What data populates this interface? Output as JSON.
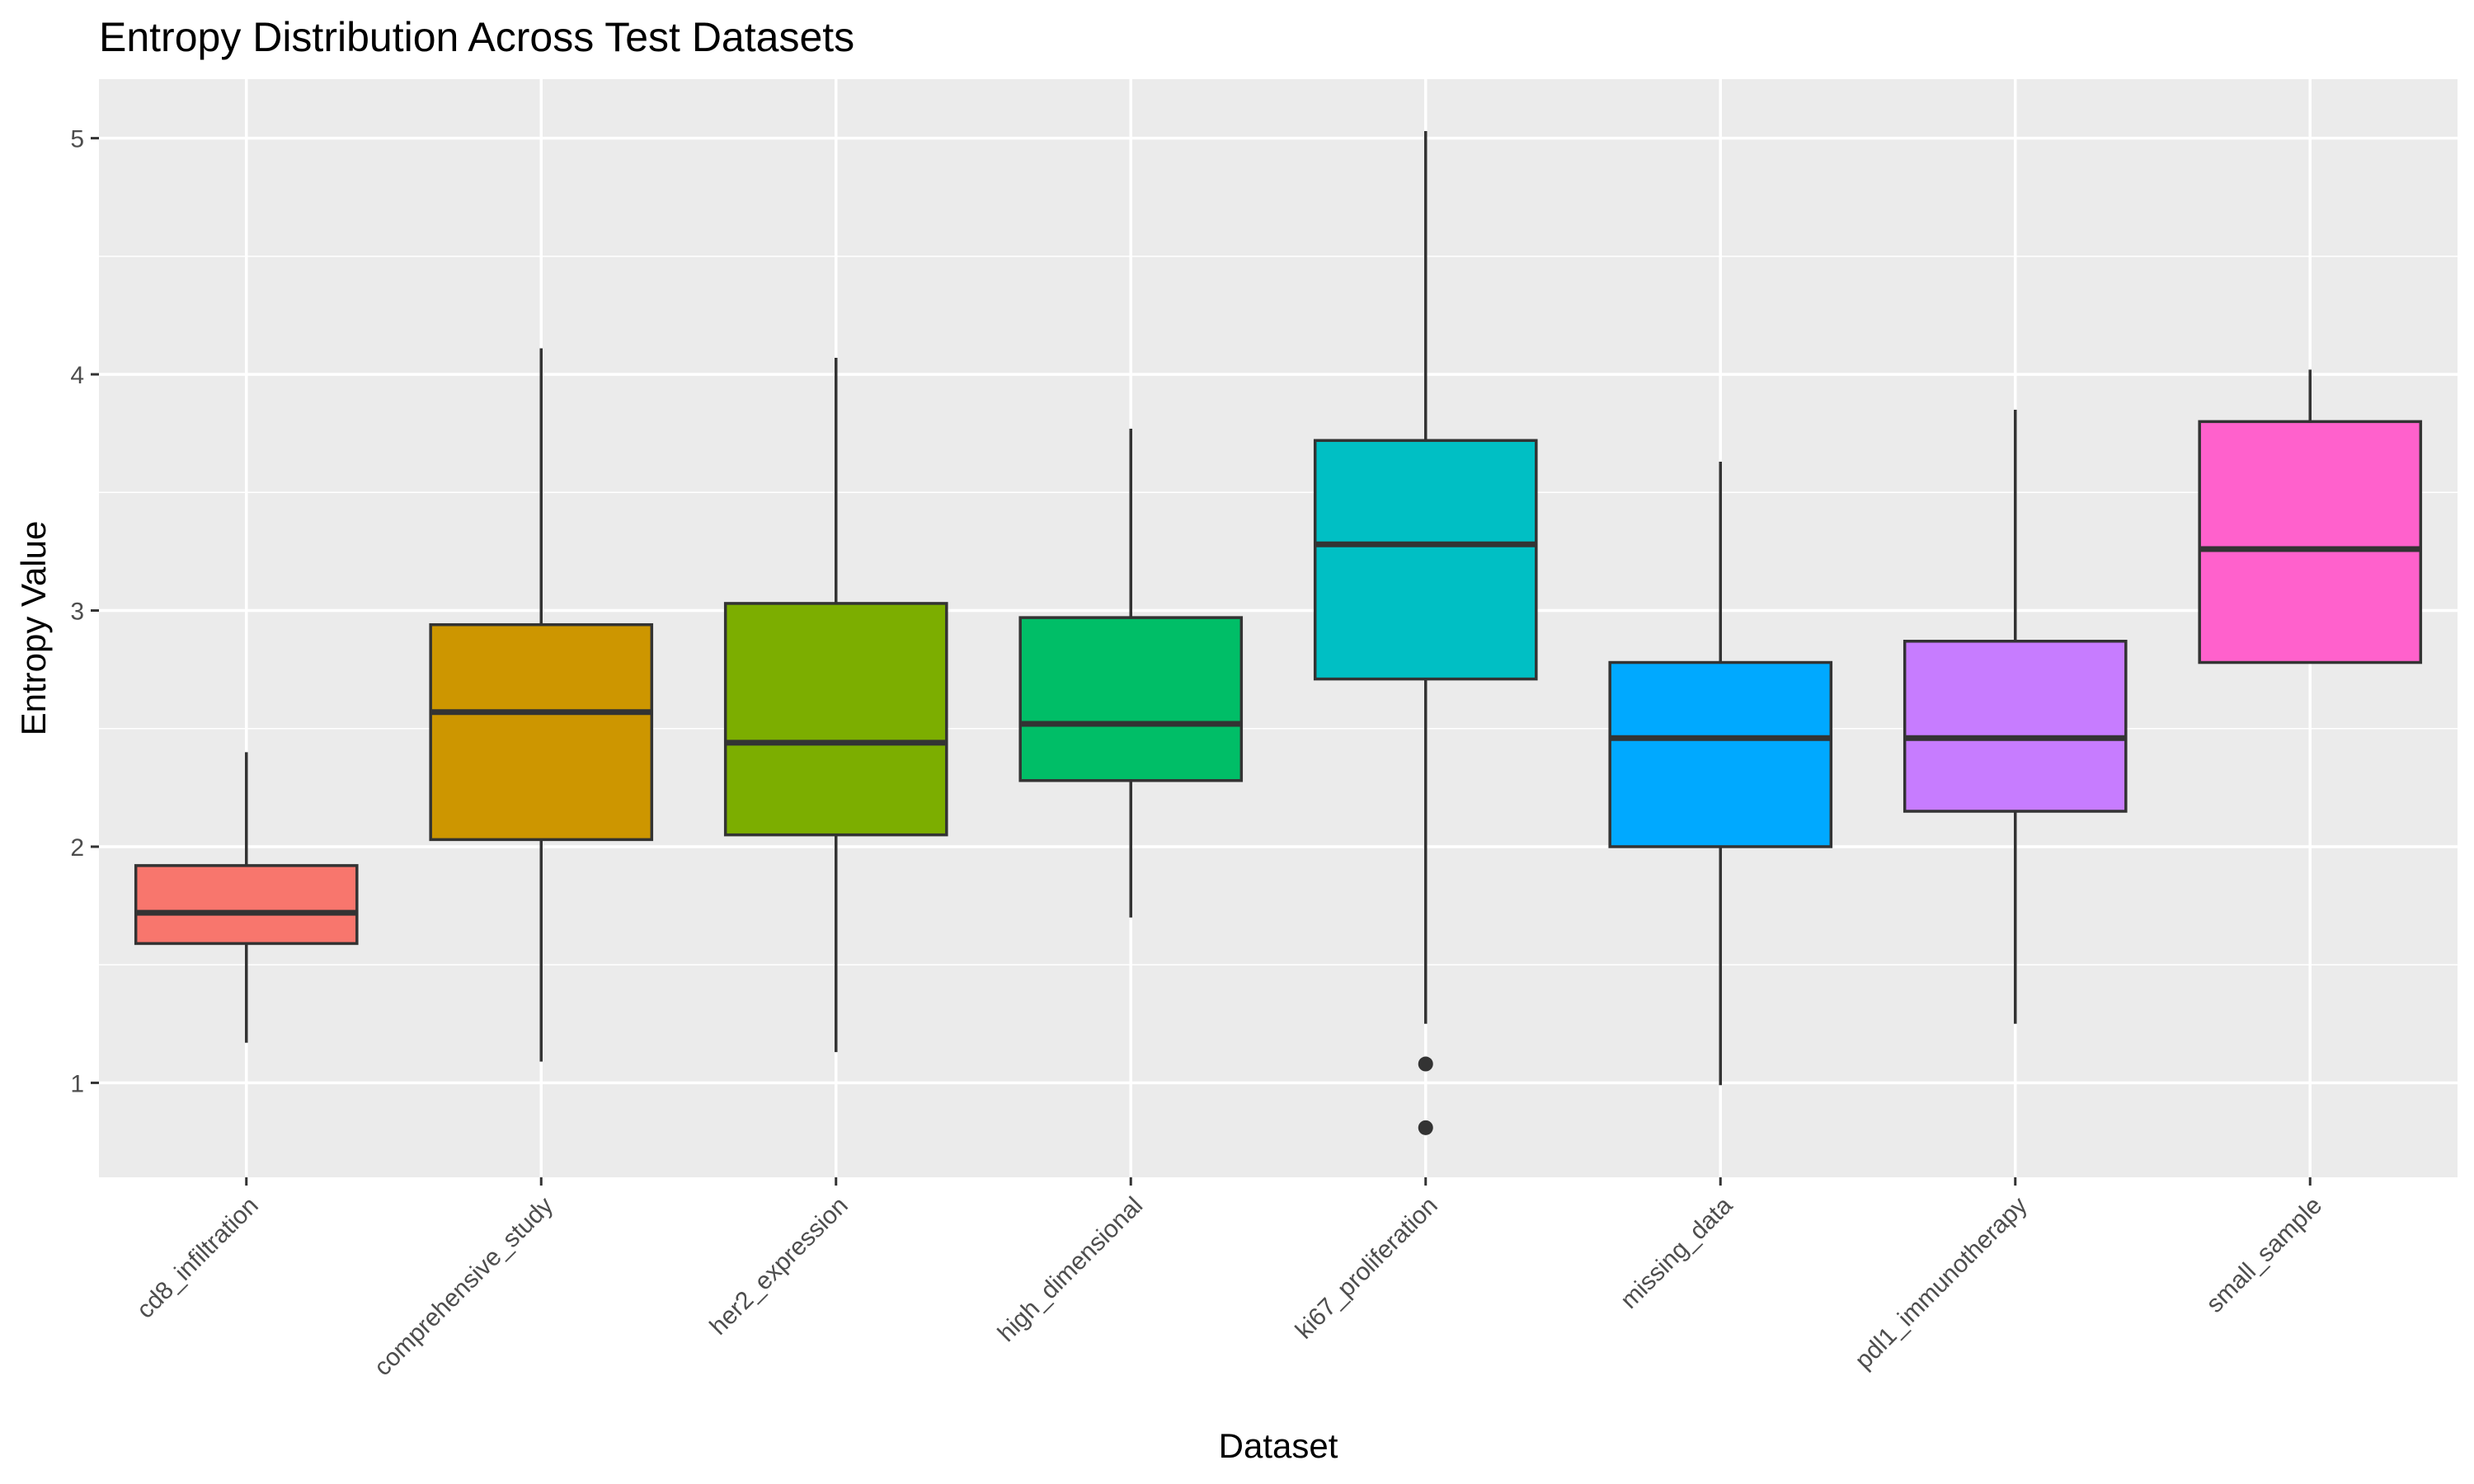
{
  "chart_data": {
    "type": "boxplot",
    "title": "Entropy Distribution Across Test Datasets",
    "xlabel": "Dataset",
    "ylabel": "Entropy Value",
    "ylim": [
      0.6,
      5.25
    ],
    "yticks": [
      1,
      2,
      3,
      4,
      5
    ],
    "grid": true,
    "legend": "none",
    "categories": [
      "cd8_infiltration",
      "comprehensive_study",
      "her2_expression",
      "high_dimensional",
      "ki67_proliferation",
      "missing_data",
      "pdl1_immunotherapy",
      "small_sample"
    ],
    "boxes": [
      {
        "category": "cd8_infiltration",
        "whisker_low": 1.17,
        "q1": 1.59,
        "median": 1.72,
        "q3": 1.92,
        "whisker_high": 2.4,
        "outliers": [],
        "color": "#F8766D"
      },
      {
        "category": "comprehensive_study",
        "whisker_low": 1.09,
        "q1": 2.03,
        "median": 2.57,
        "q3": 2.94,
        "whisker_high": 4.11,
        "outliers": [],
        "color": "#CD9600"
      },
      {
        "category": "her2_expression",
        "whisker_low": 1.13,
        "q1": 2.05,
        "median": 2.44,
        "q3": 3.03,
        "whisker_high": 4.07,
        "outliers": [],
        "color": "#7CAE00"
      },
      {
        "category": "high_dimensional",
        "whisker_low": 1.7,
        "q1": 2.28,
        "median": 2.52,
        "q3": 2.97,
        "whisker_high": 3.77,
        "outliers": [],
        "color": "#00BE67"
      },
      {
        "category": "ki67_proliferation",
        "whisker_low": 1.25,
        "q1": 2.71,
        "median": 3.28,
        "q3": 3.72,
        "whisker_high": 5.03,
        "outliers": [
          1.08,
          0.81
        ],
        "color": "#00BFC4"
      },
      {
        "category": "missing_data",
        "whisker_low": 0.99,
        "q1": 2.0,
        "median": 2.46,
        "q3": 2.78,
        "whisker_high": 3.63,
        "outliers": [],
        "color": "#00A9FF"
      },
      {
        "category": "pdl1_immunotherapy",
        "whisker_low": 1.25,
        "q1": 2.15,
        "median": 2.46,
        "q3": 2.87,
        "whisker_high": 3.85,
        "outliers": [],
        "color": "#C77CFF"
      },
      {
        "category": "small_sample",
        "whisker_low": 2.78,
        "q1": 2.78,
        "median": 3.26,
        "q3": 3.8,
        "whisker_high": 4.02,
        "outliers": [],
        "color": "#FF61CC"
      }
    ]
  }
}
